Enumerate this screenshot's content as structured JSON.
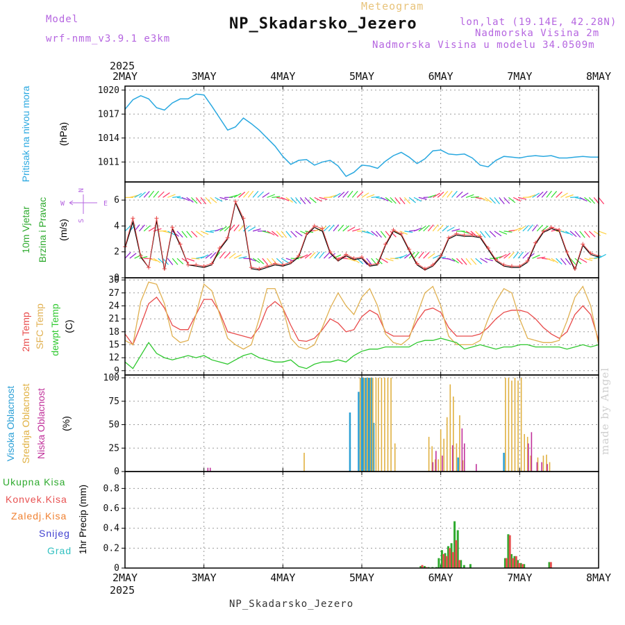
{
  "header": {
    "model_label": "Model",
    "model_name": "wrf-nmm_v3.9.1 e3km",
    "meteogram": "Meteogram",
    "station": "NP_Skadarsko_Jezero",
    "lonlat": "lon,lat (19.14E, 42.28N)",
    "elevation": "Nadmorska Visina 2m",
    "elevation_model": "Nadmorska Visina u modelu 34.0509m"
  },
  "footer": {
    "station": "NP_Skadarsko_Jezero"
  },
  "watermark": "made by Angel",
  "year": "2025",
  "dates": [
    "2MAY",
    "3MAY",
    "4MAY",
    "5MAY",
    "6MAY",
    "7MAY",
    "8MAY"
  ],
  "colors": {
    "pressure": "#29a8e0",
    "temp2m": "#e84a4a",
    "sfc": "#e0b050",
    "dewpt": "#2ec82e",
    "high_cloud": "#2a9fd6",
    "mid_cloud": "#e0b040",
    "low_cloud": "#c0309a",
    "total_precip": "#2eaa2e",
    "conv_precip": "#e85050",
    "frozen_precip": "#f08030",
    "snow": "#4040d0",
    "graupel": "#30c0c0"
  },
  "legend": {
    "compass": {
      "n": "N",
      "s": "S",
      "w": "W",
      "e": "E"
    }
  },
  "chart_data": [
    {
      "type": "line",
      "id": "pressure",
      "ylabel": [
        "Pritisak na nivou mora",
        "(hPa)"
      ],
      "yticks": [
        "1011",
        "1014",
        "1017",
        "1020"
      ],
      "ylim": [
        1008.5,
        1020.5
      ],
      "x_days": [
        0,
        0.1,
        0.2,
        0.3,
        0.4,
        0.5,
        0.6,
        0.7,
        0.8,
        0.9,
        1.0,
        1.1,
        1.2,
        1.3,
        1.4,
        1.5,
        1.6,
        1.7,
        1.8,
        1.9,
        2.0,
        2.1,
        2.2,
        2.3,
        2.4,
        2.5,
        2.6,
        2.7,
        2.8,
        2.9,
        3.0,
        3.1,
        3.2,
        3.3,
        3.4,
        3.5,
        3.6,
        3.7,
        3.8,
        3.9,
        4.0,
        4.1,
        4.2,
        4.3,
        4.4,
        4.5,
        4.6,
        4.7,
        4.8,
        4.9,
        5.0,
        5.1,
        5.2,
        5.3,
        5.4,
        5.5,
        5.6,
        5.7,
        5.8,
        5.9,
        6.0
      ],
      "values": [
        1017.6,
        1018.8,
        1019.3,
        1018.9,
        1017.8,
        1017.5,
        1018.4,
        1018.9,
        1018.9,
        1019.5,
        1019.4,
        1018.0,
        1016.5,
        1015.0,
        1015.4,
        1016.5,
        1015.8,
        1015.0,
        1014.0,
        1013.0,
        1011.7,
        1010.7,
        1011.2,
        1011.3,
        1010.6,
        1011.0,
        1011.2,
        1010.5,
        1009.2,
        1009.7,
        1010.6,
        1010.5,
        1010.2,
        1011.1,
        1011.8,
        1012.2,
        1011.6,
        1010.8,
        1011.4,
        1012.4,
        1012.5,
        1012.0,
        1011.9,
        1012.0,
        1011.5,
        1010.6,
        1010.4,
        1011.2,
        1011.7,
        1011.6,
        1011.5,
        1011.7,
        1011.8,
        1011.7,
        1011.8,
        1011.5,
        1011.5,
        1011.6,
        1011.7,
        1011.6,
        1011.6
      ]
    },
    {
      "type": "line",
      "id": "wind",
      "ylabel": [
        "10m Vjetar",
        "Brzina i Pravac",
        "(m/s)"
      ],
      "yticks": [
        "0",
        "2",
        "4",
        "6"
      ],
      "ylim": [
        0,
        7.4
      ],
      "x_days": [
        0,
        0.1,
        0.2,
        0.3,
        0.4,
        0.5,
        0.6,
        0.7,
        0.8,
        0.9,
        1.0,
        1.1,
        1.2,
        1.3,
        1.4,
        1.5,
        1.6,
        1.7,
        1.8,
        1.9,
        2.0,
        2.1,
        2.2,
        2.3,
        2.4,
        2.5,
        2.6,
        2.7,
        2.8,
        2.9,
        3.0,
        3.1,
        3.2,
        3.3,
        3.4,
        3.5,
        3.6,
        3.7,
        3.8,
        3.9,
        4.0,
        4.1,
        4.2,
        4.3,
        4.4,
        4.5,
        4.6,
        4.7,
        4.8,
        4.9,
        5.0,
        5.1,
        5.2,
        5.3,
        5.4,
        5.5,
        5.6,
        5.7,
        5.8,
        5.9,
        6.0
      ],
      "series": [
        {
          "name": "speed",
          "values": [
            2.3,
            4.3,
            1.6,
            0.8,
            4.4,
            0.6,
            3.8,
            2.5,
            1.0,
            0.9,
            0.8,
            1.0,
            2.2,
            3.0,
            5.8,
            4.4,
            0.7,
            0.6,
            0.8,
            1.0,
            0.9,
            1.1,
            1.6,
            3.3,
            3.9,
            3.6,
            1.9,
            1.3,
            1.7,
            1.4,
            1.5,
            0.9,
            1.0,
            2.5,
            3.6,
            3.3,
            2.1,
            1.0,
            0.6,
            0.9,
            1.6,
            3.0,
            3.3,
            3.2,
            3.2,
            3.1,
            2.2,
            1.3,
            0.9,
            0.8,
            0.8,
            1.2,
            2.6,
            3.5,
            3.8,
            3.6,
            1.9,
            0.6,
            2.5,
            1.8,
            1.6
          ]
        },
        {
          "name": "gust",
          "values": [
            2.4,
            4.6,
            1.7,
            0.8,
            4.6,
            0.7,
            3.9,
            2.6,
            1.0,
            1.0,
            0.9,
            1.1,
            2.3,
            3.1,
            5.9,
            4.6,
            0.8,
            0.7,
            0.9,
            1.1,
            1.0,
            1.2,
            1.7,
            3.4,
            4.0,
            3.8,
            2.0,
            1.4,
            1.8,
            1.5,
            1.6,
            1.0,
            1.1,
            2.6,
            3.7,
            3.4,
            2.2,
            1.1,
            0.7,
            1.0,
            1.7,
            3.1,
            3.4,
            3.3,
            3.3,
            3.2,
            2.3,
            1.4,
            1.0,
            0.9,
            0.9,
            1.3,
            2.7,
            3.6,
            3.9,
            3.7,
            2.0,
            0.7,
            2.6,
            1.9,
            1.7
          ]
        }
      ]
    },
    {
      "type": "line",
      "id": "temperature",
      "ylabel": [
        "2m Temp",
        "SFC Temp",
        "dewpt Temp",
        "(C)"
      ],
      "yticks": [
        "9",
        "12",
        "15",
        "18",
        "21",
        "24",
        "27",
        "30"
      ],
      "ylim": [
        8,
        30.5
      ],
      "x_days": [
        0,
        0.1,
        0.2,
        0.3,
        0.4,
        0.5,
        0.6,
        0.7,
        0.8,
        0.9,
        1.0,
        1.1,
        1.2,
        1.3,
        1.4,
        1.5,
        1.6,
        1.7,
        1.8,
        1.9,
        2.0,
        2.1,
        2.2,
        2.3,
        2.4,
        2.5,
        2.6,
        2.7,
        2.8,
        2.9,
        3.0,
        3.1,
        3.2,
        3.3,
        3.4,
        3.5,
        3.6,
        3.7,
        3.8,
        3.9,
        4.0,
        4.1,
        4.2,
        4.3,
        4.4,
        4.5,
        4.6,
        4.7,
        4.8,
        4.9,
        5.0,
        5.1,
        5.2,
        5.3,
        5.4,
        5.5,
        5.6,
        5.7,
        5.8,
        5.9,
        6.0
      ],
      "series": [
        {
          "name": "2m Temp",
          "values": [
            17.5,
            15.0,
            19.5,
            24.5,
            26.0,
            23.5,
            19.5,
            18.5,
            18.5,
            22.0,
            25.5,
            25.5,
            22.5,
            18.0,
            17.5,
            17.0,
            16.5,
            19.0,
            23.5,
            25.0,
            23.5,
            19.5,
            16.0,
            15.8,
            16.5,
            18.5,
            21.0,
            20.0,
            18.0,
            18.5,
            21.5,
            23.0,
            22.0,
            18.0,
            17.0,
            17.0,
            17.0,
            20.5,
            23.0,
            23.5,
            22.5,
            19.0,
            17.0,
            17.0,
            17.0,
            17.5,
            19.0,
            21.0,
            22.5,
            23.0,
            23.0,
            22.5,
            21.0,
            19.0,
            17.5,
            16.5,
            18.0,
            22.0,
            24.0,
            22.0,
            16.0
          ]
        },
        {
          "name": "SFC Temp",
          "values": [
            16.0,
            15.0,
            25.0,
            29.5,
            29.0,
            24.5,
            17.0,
            15.5,
            16.0,
            22.0,
            29.0,
            27.5,
            22.0,
            16.5,
            15.0,
            14.0,
            15.0,
            21.0,
            28.0,
            28.0,
            23.5,
            16.5,
            14.5,
            14.0,
            15.0,
            19.0,
            23.5,
            27.0,
            24.0,
            22.0,
            26.0,
            28.0,
            24.0,
            17.5,
            15.5,
            15.0,
            16.5,
            22.0,
            27.0,
            28.5,
            24.0,
            17.0,
            15.0,
            15.0,
            15.0,
            16.0,
            21.0,
            25.0,
            28.0,
            27.0,
            21.0,
            16.5,
            16.0,
            15.5,
            15.5,
            16.0,
            20.5,
            26.0,
            28.5,
            24.0,
            15.0
          ]
        },
        {
          "name": "dewpt Temp",
          "values": [
            11.0,
            9.5,
            12.5,
            15.5,
            13.0,
            12.0,
            11.5,
            12.0,
            12.5,
            12.0,
            12.5,
            11.5,
            11.0,
            10.5,
            11.5,
            12.5,
            13.0,
            12.0,
            11.5,
            11.0,
            11.0,
            11.5,
            10.0,
            9.5,
            10.5,
            11.0,
            11.0,
            11.5,
            11.0,
            12.5,
            13.5,
            14.0,
            14.0,
            14.5,
            14.5,
            14.5,
            14.5,
            15.5,
            16.0,
            16.0,
            16.5,
            16.0,
            15.5,
            14.0,
            14.5,
            15.0,
            14.5,
            14.0,
            14.5,
            14.5,
            15.0,
            15.0,
            14.5,
            14.5,
            14.5,
            14.5,
            14.0,
            14.5,
            15.0,
            14.5,
            15.0
          ]
        }
      ]
    },
    {
      "type": "bar",
      "id": "clouds",
      "ylabel": [
        "Visoka Oblacnost",
        "Srednja Oblacnost",
        "Niska Oblacnost",
        "(%)"
      ],
      "yticks": [
        "0",
        "25",
        "50",
        "75",
        "100"
      ],
      "ylim": [
        0,
        103
      ],
      "series": [
        {
          "name": "Visoka Oblacnost",
          "bars": [
            [
              2.85,
              63
            ],
            [
              2.96,
              85
            ],
            [
              3.0,
              100
            ],
            [
              3.02,
              100
            ],
            [
              3.05,
              100
            ],
            [
              3.08,
              100
            ],
            [
              3.1,
              100
            ],
            [
              3.12,
              100
            ],
            [
              3.15,
              52
            ],
            [
              4.22,
              15
            ],
            [
              4.8,
              20
            ]
          ]
        },
        {
          "name": "Srednja Oblacnost",
          "bars": [
            [
              0.23,
              0
            ],
            [
              2.27,
              20
            ],
            [
              2.98,
              100
            ],
            [
              3.03,
              100
            ],
            [
              3.07,
              100
            ],
            [
              3.11,
              100
            ],
            [
              3.14,
              100
            ],
            [
              3.18,
              100
            ],
            [
              3.21,
              100
            ],
            [
              3.25,
              100
            ],
            [
              3.29,
              100
            ],
            [
              3.33,
              100
            ],
            [
              3.37,
              100
            ],
            [
              3.42,
              30
            ],
            [
              3.85,
              37
            ],
            [
              3.89,
              27
            ],
            [
              3.93,
              13
            ],
            [
              3.97,
              13
            ],
            [
              4.0,
              45
            ],
            [
              4.04,
              35
            ],
            [
              4.08,
              58
            ],
            [
              4.12,
              93
            ],
            [
              4.16,
              80
            ],
            [
              4.2,
              30
            ],
            [
              4.24,
              60
            ],
            [
              4.28,
              12
            ],
            [
              4.82,
              100
            ],
            [
              4.86,
              100
            ],
            [
              4.9,
              97
            ],
            [
              4.94,
              100
            ],
            [
              4.98,
              97
            ],
            [
              5.02,
              100
            ],
            [
              5.06,
              40
            ],
            [
              5.1,
              37
            ],
            [
              5.14,
              17
            ],
            [
              5.23,
              15
            ],
            [
              5.3,
              17
            ],
            [
              5.34,
              18
            ],
            [
              5.38,
              10
            ]
          ]
        },
        {
          "name": "Niska Oblacnost",
          "bars": [
            [
              1.05,
              4
            ],
            [
              1.08,
              4
            ],
            [
              3.9,
              10
            ],
            [
              3.94,
              22
            ],
            [
              4.02,
              17
            ],
            [
              4.15,
              28
            ],
            [
              4.27,
              46
            ],
            [
              4.3,
              30
            ],
            [
              4.45,
              8
            ],
            [
              5.11,
              30
            ],
            [
              5.15,
              42
            ],
            [
              5.22,
              10
            ],
            [
              5.28,
              10
            ],
            [
              5.35,
              8
            ]
          ]
        }
      ]
    },
    {
      "type": "bar",
      "id": "precip",
      "ylabel": [
        "1hr Precip (mm)"
      ],
      "legend": [
        "Ukupna Kisa",
        "Konvek.Kisa",
        "Zaledj.Kisa",
        "Snijeg",
        "Grad"
      ],
      "yticks": [
        "0",
        "0.2",
        "0.4",
        "0.6",
        "0.8"
      ],
      "ylim": [
        0,
        0.97
      ],
      "series": [
        {
          "name": "Ukupna Kisa",
          "bars": [
            [
              3.75,
              0.02
            ],
            [
              3.8,
              0.02
            ],
            [
              3.85,
              0.01
            ],
            [
              3.9,
              0.01
            ],
            [
              3.95,
              0.01
            ],
            [
              3.98,
              0.1
            ],
            [
              4.02,
              0.18
            ],
            [
              4.06,
              0.15
            ],
            [
              4.1,
              0.22
            ],
            [
              4.14,
              0.25
            ],
            [
              4.18,
              0.47
            ],
            [
              4.22,
              0.38
            ],
            [
              4.26,
              0.08
            ],
            [
              4.3,
              0.03
            ],
            [
              4.38,
              0.04
            ],
            [
              4.82,
              0.1
            ],
            [
              4.86,
              0.34
            ],
            [
              4.9,
              0.14
            ],
            [
              4.94,
              0.12
            ],
            [
              4.98,
              0.08
            ],
            [
              5.02,
              0.05
            ],
            [
              5.06,
              0.04
            ],
            [
              5.38,
              0.06
            ]
          ]
        },
        {
          "name": "Konvek.Kisa",
          "bars": [
            [
              3.77,
              0.03
            ],
            [
              3.82,
              0.01
            ],
            [
              4.04,
              0.14
            ],
            [
              4.08,
              0.12
            ],
            [
              4.12,
              0.2
            ],
            [
              4.16,
              0.16
            ],
            [
              4.2,
              0.28
            ],
            [
              4.24,
              0.08
            ],
            [
              4.84,
              0.1
            ],
            [
              4.88,
              0.33
            ],
            [
              4.92,
              0.1
            ],
            [
              4.96,
              0.12
            ],
            [
              5.0,
              0.05
            ],
            [
              5.04,
              0.04
            ],
            [
              5.4,
              0.06
            ]
          ]
        }
      ]
    }
  ]
}
